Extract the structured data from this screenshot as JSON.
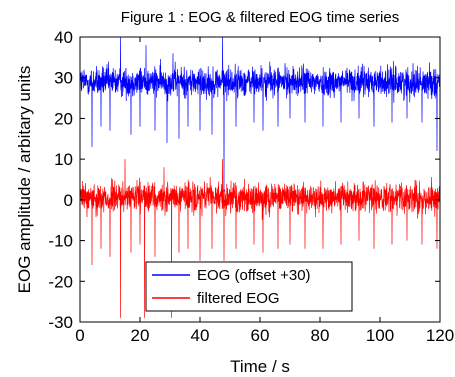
{
  "chart_data": {
    "type": "line",
    "title": "Figure 1 : EOG & filtered EOG time series",
    "xlabel": "Time / s",
    "ylabel": "EOG amplitude / arbitary units",
    "xlim": [
      0,
      120
    ],
    "ylim": [
      -30,
      40
    ],
    "x_ticks": [
      "0",
      "20",
      "40",
      "60",
      "80",
      "100",
      "120"
    ],
    "y_ticks": [
      "-30",
      "-20",
      "-10",
      "0",
      "10",
      "20",
      "30",
      "40"
    ],
    "grid": false,
    "legend_position": "bottom-center",
    "series": [
      {
        "name": "EOG (offset +30)",
        "color": "#0000ff",
        "baseline": 29,
        "noise_band": [
          24,
          34
        ],
        "spikes": [
          {
            "x": 4,
            "y": 13
          },
          {
            "x": 7,
            "y": 18
          },
          {
            "x": 10,
            "y": 17
          },
          {
            "x": 13.5,
            "y": 40
          },
          {
            "x": 17,
            "y": 16
          },
          {
            "x": 20,
            "y": 18
          },
          {
            "x": 22,
            "y": 38
          },
          {
            "x": 25,
            "y": 17
          },
          {
            "x": 29,
            "y": 14
          },
          {
            "x": 31,
            "y": 36
          },
          {
            "x": 33,
            "y": 15
          },
          {
            "x": 36,
            "y": 18
          },
          {
            "x": 40,
            "y": 17
          },
          {
            "x": 44,
            "y": 16
          },
          {
            "x": 47.5,
            "y": 40
          },
          {
            "x": 48,
            "y": 2
          },
          {
            "x": 52,
            "y": 18
          },
          {
            "x": 58,
            "y": 19
          },
          {
            "x": 61,
            "y": 17
          },
          {
            "x": 66,
            "y": 18
          },
          {
            "x": 70,
            "y": 20
          },
          {
            "x": 75,
            "y": 19
          },
          {
            "x": 81,
            "y": 18
          },
          {
            "x": 87,
            "y": 19
          },
          {
            "x": 93,
            "y": 20
          },
          {
            "x": 98,
            "y": 18
          },
          {
            "x": 104,
            "y": 19
          },
          {
            "x": 109,
            "y": 20
          },
          {
            "x": 114,
            "y": 19
          },
          {
            "x": 119,
            "y": 12
          }
        ]
      },
      {
        "name": "filtered EOG",
        "color": "#ff0000",
        "baseline": 0.5,
        "noise_band": [
          -5,
          5
        ],
        "spikes": [
          {
            "x": 4,
            "y": -16
          },
          {
            "x": 7,
            "y": -12
          },
          {
            "x": 10,
            "y": -14
          },
          {
            "x": 13.5,
            "y": -29
          },
          {
            "x": 15,
            "y": 10
          },
          {
            "x": 17,
            "y": -13
          },
          {
            "x": 20,
            "y": -11
          },
          {
            "x": 21.5,
            "y": -29
          },
          {
            "x": 25,
            "y": -14
          },
          {
            "x": 28,
            "y": 8
          },
          {
            "x": 30.5,
            "y": -29
          },
          {
            "x": 33,
            "y": -13
          },
          {
            "x": 36,
            "y": -12
          },
          {
            "x": 40,
            "y": -15
          },
          {
            "x": 44,
            "y": -12
          },
          {
            "x": 47.5,
            "y": 10
          },
          {
            "x": 48,
            "y": -15
          },
          {
            "x": 52,
            "y": -12
          },
          {
            "x": 58,
            "y": -11
          },
          {
            "x": 61,
            "y": -13
          },
          {
            "x": 66,
            "y": -12
          },
          {
            "x": 70,
            "y": -11
          },
          {
            "x": 75,
            "y": -12
          },
          {
            "x": 81,
            "y": -12
          },
          {
            "x": 87,
            "y": -11
          },
          {
            "x": 93,
            "y": -10
          },
          {
            "x": 98,
            "y": -12
          },
          {
            "x": 104,
            "y": -11
          },
          {
            "x": 109,
            "y": -10
          },
          {
            "x": 114,
            "y": -11
          },
          {
            "x": 119,
            "y": -12
          }
        ]
      }
    ]
  }
}
